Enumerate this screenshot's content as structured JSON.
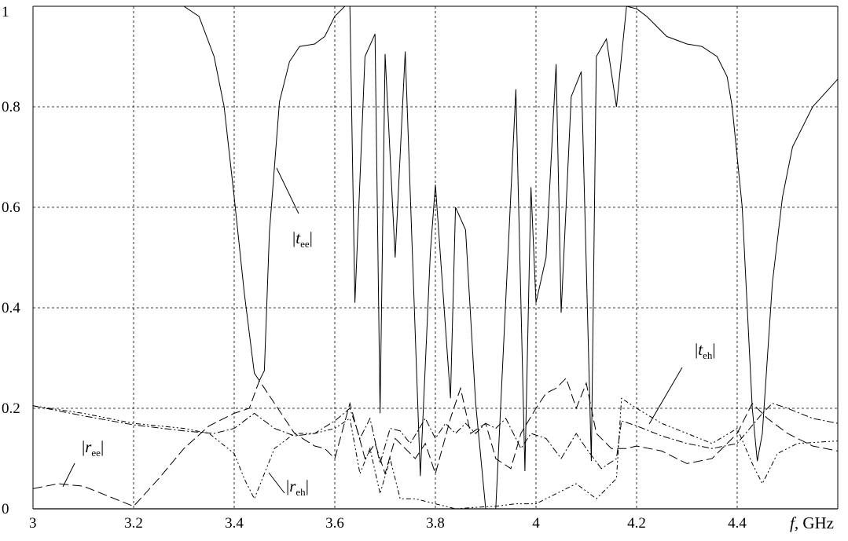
{
  "chart_data": {
    "type": "line",
    "xlabel_italic": "f",
    "xlabel_unit": ", GHz",
    "xlim": [
      3,
      4.6
    ],
    "ylim": [
      0,
      1
    ],
    "grid": true,
    "x_ticks": [
      "3",
      "3.2",
      "3.4",
      "3.6",
      "3.8",
      "4",
      "4.2",
      "4.4"
    ],
    "x_tick_values": [
      3,
      3.2,
      3.4,
      3.6,
      3.8,
      4,
      4.2,
      4.4
    ],
    "y_ticks": [
      "0",
      "0.2",
      "0.4",
      "0.6",
      "0.8",
      "1"
    ],
    "y_tick_values": [
      0,
      0.2,
      0.4,
      0.6,
      0.8,
      1
    ],
    "series": [
      {
        "name": "|t_ee|",
        "label_main": "t",
        "label_sub": "ee",
        "style": "solid",
        "x": [
          3.0,
          3.1,
          3.2,
          3.3,
          3.33,
          3.36,
          3.38,
          3.4,
          3.42,
          3.44,
          3.45,
          3.46,
          3.47,
          3.48,
          3.49,
          3.51,
          3.53,
          3.56,
          3.58,
          3.6,
          3.62,
          3.63,
          3.64,
          3.66,
          3.68,
          3.69,
          3.7,
          3.72,
          3.74,
          3.77,
          3.79,
          3.8,
          3.83,
          3.84,
          3.86,
          3.88,
          3.9,
          3.92,
          3.96,
          3.978,
          3.99,
          4.0,
          4.02,
          4.04,
          4.05,
          4.07,
          4.09,
          4.11,
          4.12,
          4.14,
          4.16,
          4.18,
          4.2,
          4.22,
          4.26,
          4.3,
          4.33,
          4.36,
          4.38,
          4.39,
          4.41,
          4.42,
          4.43,
          4.44,
          4.45,
          4.47,
          4.49,
          4.51,
          4.55,
          4.6
        ],
        "y": [
          1,
          1,
          1,
          1.0,
          0.98,
          0.9,
          0.8,
          0.62,
          0.43,
          0.27,
          0.255,
          0.275,
          0.55,
          0.68,
          0.81,
          0.89,
          0.92,
          0.925,
          0.94,
          0.98,
          1.0,
          1.0,
          0.41,
          0.9,
          0.945,
          0.19,
          0.905,
          0.5,
          0.91,
          0.065,
          0.51,
          0.645,
          0.22,
          0.6,
          0.555,
          0.21,
          0.0,
          0.0,
          0.835,
          0.075,
          0.64,
          0.41,
          0.5,
          0.885,
          0.39,
          0.82,
          0.87,
          0.095,
          0.9,
          0.935,
          0.8,
          1.0,
          0.995,
          0.98,
          0.94,
          0.925,
          0.92,
          0.9,
          0.86,
          0.8,
          0.6,
          0.4,
          0.2,
          0.095,
          0.15,
          0.45,
          0.62,
          0.72,
          0.8,
          0.855
        ]
      },
      {
        "name": "|t_eh|",
        "label_main": "t",
        "label_sub": "eh",
        "style": "dashdot",
        "x": [
          3.0,
          3.1,
          3.2,
          3.3,
          3.36,
          3.4,
          3.44,
          3.48,
          3.52,
          3.56,
          3.6,
          3.63,
          3.65,
          3.67,
          3.69,
          3.71,
          3.73,
          3.75,
          3.78,
          3.8,
          3.82,
          3.84,
          3.86,
          3.88,
          3.9,
          3.92,
          3.94,
          3.97,
          3.99,
          4.02,
          4.05,
          4.08,
          4.1,
          4.13,
          4.16,
          4.17,
          4.2,
          4.25,
          4.3,
          4.35,
          4.4,
          4.45,
          4.47,
          4.5,
          4.55,
          4.6
        ],
        "y": [
          0.205,
          0.185,
          0.167,
          0.155,
          0.15,
          0.16,
          0.19,
          0.16,
          0.145,
          0.15,
          0.175,
          0.2,
          0.14,
          0.18,
          0.09,
          0.16,
          0.155,
          0.13,
          0.18,
          0.14,
          0.17,
          0.15,
          0.17,
          0.15,
          0.17,
          0.16,
          0.18,
          0.12,
          0.15,
          0.14,
          0.1,
          0.15,
          0.12,
          0.08,
          0.1,
          0.175,
          0.165,
          0.145,
          0.13,
          0.12,
          0.13,
          0.19,
          0.21,
          0.2,
          0.18,
          0.17
        ]
      },
      {
        "name": "|r_ee|",
        "label_main": "r",
        "label_sub": "ee",
        "style": "longdash",
        "x": [
          3.0,
          3.05,
          3.1,
          3.15,
          3.2,
          3.25,
          3.3,
          3.35,
          3.4,
          3.43,
          3.45,
          3.48,
          3.52,
          3.56,
          3.58,
          3.6,
          3.63,
          3.66,
          3.68,
          3.7,
          3.72,
          3.74,
          3.76,
          3.78,
          3.8,
          3.83,
          3.85,
          3.87,
          3.9,
          3.92,
          3.95,
          3.97,
          4.0,
          4.02,
          4.04,
          4.06,
          4.08,
          4.1,
          4.12,
          4.15,
          4.18,
          4.2,
          4.25,
          4.3,
          4.35,
          4.4,
          4.43,
          4.46,
          4.5,
          4.55,
          4.6
        ],
        "y": [
          0.04,
          0.05,
          0.045,
          0.025,
          0.005,
          0.06,
          0.12,
          0.165,
          0.19,
          0.2,
          0.255,
          0.21,
          0.15,
          0.125,
          0.12,
          0.1,
          0.21,
          0.1,
          0.13,
          0.07,
          0.14,
          0.12,
          0.1,
          0.13,
          0.07,
          0.18,
          0.24,
          0.15,
          0.17,
          0.1,
          0.08,
          0.15,
          0.2,
          0.23,
          0.24,
          0.26,
          0.2,
          0.25,
          0.15,
          0.12,
          0.12,
          0.125,
          0.115,
          0.09,
          0.1,
          0.15,
          0.21,
          0.18,
          0.15,
          0.125,
          0.115
        ]
      },
      {
        "name": "|r_eh|",
        "label_main": "r",
        "label_sub": "eh",
        "style": "dashdotdot",
        "x": [
          3.0,
          3.1,
          3.2,
          3.3,
          3.35,
          3.4,
          3.42,
          3.44,
          3.46,
          3.48,
          3.52,
          3.56,
          3.6,
          3.63,
          3.65,
          3.67,
          3.69,
          3.71,
          3.73,
          3.76,
          3.8,
          3.84,
          3.88,
          3.92,
          3.96,
          4.0,
          4.04,
          4.08,
          4.12,
          4.16,
          4.17,
          4.2,
          4.25,
          4.3,
          4.35,
          4.4,
          4.43,
          4.45,
          4.48,
          4.52,
          4.6
        ],
        "y": [
          0.205,
          0.19,
          0.17,
          0.16,
          0.15,
          0.11,
          0.06,
          0.02,
          0.07,
          0.12,
          0.15,
          0.15,
          0.16,
          0.18,
          0.07,
          0.12,
          0.03,
          0.1,
          0.02,
          0.02,
          0.01,
          0.0,
          0.003,
          0.005,
          0.01,
          0.01,
          0.03,
          0.05,
          0.02,
          0.06,
          0.22,
          0.2,
          0.17,
          0.15,
          0.13,
          0.16,
          0.09,
          0.05,
          0.11,
          0.13,
          0.135
        ]
      }
    ]
  }
}
